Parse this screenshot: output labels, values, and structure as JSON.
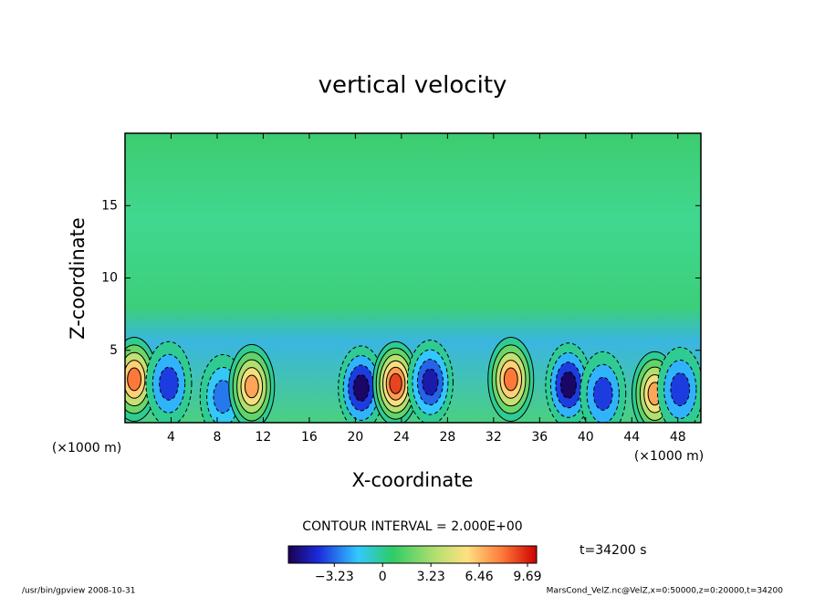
{
  "chart_data": {
    "type": "contour",
    "title": "vertical velocity",
    "x_label": "X-coordinate",
    "y_label": "Z-coordinate",
    "x_unit_label": "(×1000 m)",
    "x_unit_label_right": "(×1000 m)",
    "xlim": [
      0,
      50
    ],
    "xticks": [
      4,
      8,
      12,
      16,
      20,
      24,
      28,
      32,
      36,
      40,
      44,
      48
    ],
    "ylim": [
      0,
      20
    ],
    "yticks": [
      5,
      10,
      15
    ],
    "contour_interval": "CONTOUR INTERVAL = 2.000E+00",
    "time_label": "t=34200 s",
    "colorbar_lim": [
      -6.3,
      10.3
    ],
    "colorbar_ticks": [
      {
        "value": -3.23,
        "label": "−3.23"
      },
      0,
      3.23,
      6.46,
      9.69
    ],
    "footer_left": "/usr/bin/gpview   2008-10-31",
    "footer_right": "MarsCond_VelZ.nc@VelZ,x=0:50000,z=0:20000,t=34200",
    "cores": {
      "x": [
        0.8,
        3.8,
        8.5,
        11,
        20.5,
        23.5,
        26.5,
        33.5,
        38.5,
        41.5,
        46,
        48.2
      ],
      "z": [
        3,
        2.7,
        1.8,
        2.5,
        2.4,
        2.7,
        2.8,
        3,
        2.6,
        2,
        2,
        2.3
      ],
      "values": [
        8,
        -4,
        -3,
        7,
        -6,
        9,
        -5,
        8,
        -6,
        -4,
        7,
        -4
      ]
    }
  }
}
